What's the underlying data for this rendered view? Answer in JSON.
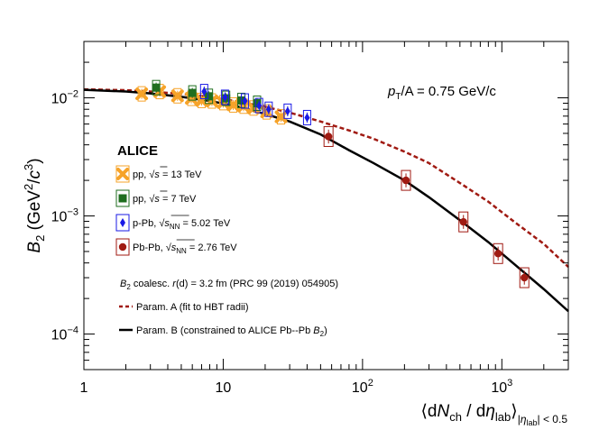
{
  "chart_data": {
    "type": "scatter",
    "title": "",
    "xlabel": {
      "pre": "⟨d",
      "N": "N",
      "ch": "ch",
      "mid": " / d",
      "eta": "η",
      "lab": "lab",
      "post": "⟩",
      "sub1": "|",
      "sub_eta": "η",
      "sub_lab": "lab",
      "sub2": "| < 0.5"
    },
    "ylabel": {
      "B": "B",
      "two": "2",
      "open": " (GeV",
      "sup2": "2",
      "slash": "/",
      "c": "c",
      "sup3": "3",
      "close": ")"
    },
    "xscale": "log",
    "yscale": "log",
    "xlim": [
      1,
      3000
    ],
    "ylim": [
      5e-05,
      0.03
    ],
    "x_ticks": [
      {
        "value": 1,
        "label": "1"
      },
      {
        "value": 10,
        "label": "10"
      },
      {
        "value": 100,
        "label": "10",
        "exp": "2"
      },
      {
        "value": 1000,
        "label": "10",
        "exp": "3"
      }
    ],
    "y_ticks": [
      {
        "value": 0.0001,
        "label": "10",
        "exp": "−4"
      },
      {
        "value": 0.001,
        "label": "10",
        "exp": "−3"
      },
      {
        "value": 0.01,
        "label": "10",
        "exp": "−2"
      }
    ],
    "annotation": {
      "p": "p",
      "T": "T",
      "rest": "/A = 0.75 GeV/c"
    },
    "legend_title": "ALICE",
    "series": [
      {
        "name": "pp, √s = 13 TeV",
        "label_pre": "pp, ",
        "label_root": "s",
        "label_post": " = 13 TeV",
        "color": "#f6a329",
        "marker": "cross",
        "x": [
          2.6,
          3.5,
          4.7,
          5.9,
          7.0,
          8.3,
          10.0,
          11.8,
          14.0,
          16.5,
          20.5,
          26.0
        ],
        "y": [
          0.0108,
          0.0113,
          0.0104,
          0.0099,
          0.0095,
          0.0094,
          0.0091,
          0.0087,
          0.0085,
          0.0082,
          0.0076,
          0.0069
        ]
      },
      {
        "name": "pp, √s = 7 TeV",
        "label_pre": "pp, ",
        "label_root": "s",
        "label_post": " = 7 TeV",
        "color": "#1f6e1f",
        "marker": "square",
        "x": [
          3.3,
          6.0,
          7.9,
          10.5,
          13.5,
          17.5
        ],
        "y": [
          0.0122,
          0.011,
          0.0103,
          0.0099,
          0.0095,
          0.009
        ]
      },
      {
        "name": "p-Pb, √sNN = 5.02 TeV",
        "label_pre": "p-Pb, ",
        "label_root": "s",
        "label_sub": "NN",
        "label_post": " = 5.02 TeV",
        "color": "#1a1ae6",
        "marker": "diamond",
        "x": [
          7.3,
          10.3,
          14.3,
          18.1,
          21.2,
          29.0,
          40.0
        ],
        "y": [
          0.0113,
          0.0101,
          0.0094,
          0.0086,
          0.008,
          0.0077,
          0.0068
        ]
      },
      {
        "name": "Pb-Pb, √sNN = 2.76 TeV",
        "label_pre": "Pb-Pb, ",
        "label_root": "s",
        "label_sub": "NN",
        "label_post": " = 2.76 TeV",
        "color": "#a01a12",
        "marker": "circle",
        "x": [
          57,
          205,
          530,
          940,
          1450
        ],
        "y": [
          0.0047,
          0.002,
          0.00089,
          0.00048,
          0.0003
        ]
      }
    ],
    "model_note": {
      "B": "B",
      "two": "2",
      "text": " coalesc. ",
      "r": "r",
      "rest": "(d) = 3.2 fm (PRC 99 (2019) 054905)"
    },
    "curves": [
      {
        "name": "Param. A (fit to HBT radii)",
        "label": "Param. A (fit to HBT radii)",
        "style": "dashed",
        "color": "#a01a12",
        "x": [
          1,
          2,
          3,
          5,
          8,
          12,
          20,
          30,
          50,
          80,
          120,
          200,
          300,
          500,
          800,
          1200,
          2000,
          3000
        ],
        "y": [
          0.0118,
          0.0116,
          0.0113,
          0.0108,
          0.0102,
          0.0094,
          0.0084,
          0.0075,
          0.0063,
          0.0053,
          0.0045,
          0.0035,
          0.0028,
          0.0019,
          0.00132,
          0.00091,
          0.00058,
          0.00037
        ]
      },
      {
        "name": "Param. B (constrained to ALICE Pb-Pb B2)",
        "label_pre": "Param. B (constrained to ALICE Pb--Pb ",
        "label_B": "B",
        "label_two": "2",
        "label_post": ")",
        "style": "solid",
        "color": "#000000",
        "x": [
          1,
          2,
          3,
          5,
          8,
          12,
          20,
          30,
          50,
          80,
          120,
          200,
          300,
          500,
          800,
          1200,
          2000,
          3000
        ],
        "y": [
          0.0117,
          0.0113,
          0.0109,
          0.0102,
          0.0094,
          0.0086,
          0.0073,
          0.0063,
          0.0049,
          0.0036,
          0.0028,
          0.002,
          0.00144,
          0.00092,
          0.0006,
          0.0004,
          0.00024,
          0.000156
        ]
      }
    ]
  }
}
